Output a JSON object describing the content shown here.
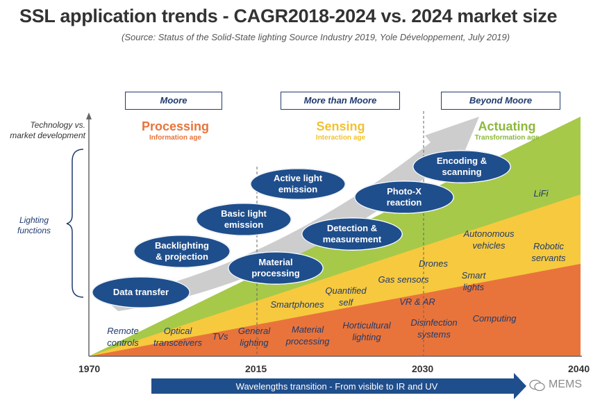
{
  "header": {
    "title": "SSL application trends - CAGR2018-2024 vs. 2024 market size",
    "source": "(Source: Status of the Solid-State lighting Source Industry 2019, Yole Développement, July 2019)"
  },
  "eras": [
    "Moore",
    "More than Moore",
    "Beyond Moore"
  ],
  "phases": [
    {
      "name": "Processing",
      "age": "Information age",
      "color": "#e8743b"
    },
    {
      "name": "Sensing",
      "age": "Interaction age",
      "color": "#f2c230"
    },
    {
      "name": "Actuating",
      "age": "Transformation age",
      "color": "#8cb83c"
    }
  ],
  "axis": {
    "y_label": "Technology vs. market development",
    "bracket_label": "Lighting functions",
    "years": [
      "1970",
      "2015",
      "2030",
      "2040"
    ]
  },
  "functions": [
    "Data transfer",
    "Backlighting\n& projection",
    "Basic light\nemission",
    "Active light\nemission",
    "Material\nprocessing",
    "Detection &\nmeasurement",
    "Photo-X\nreaction",
    "Encoding &\nscanning"
  ],
  "applications": [
    "Remote\ncontrols",
    "Optical\ntransceivers",
    "TVs",
    "General\nlighting",
    "Material\nprocessing",
    "Horticultural\nlighting",
    "Disinfection\nsystems",
    "Computing",
    "Smartphones",
    "Quantified\nself",
    "VR & AR",
    "Gas sensors",
    "Drones",
    "Smart\nlights",
    "Autonomous\nvehicles",
    "Robotic\nservants",
    "LiFi"
  ],
  "colors": {
    "navy": "#1f4e8c",
    "orange": "#e8743b",
    "yellow": "#f7c93e",
    "green": "#a6c94a",
    "gray_arrow": "#c8c8c8"
  },
  "footer": {
    "wavelength": "Wavelengths transition - From visible to IR and UV",
    "logo": "MEMS"
  }
}
